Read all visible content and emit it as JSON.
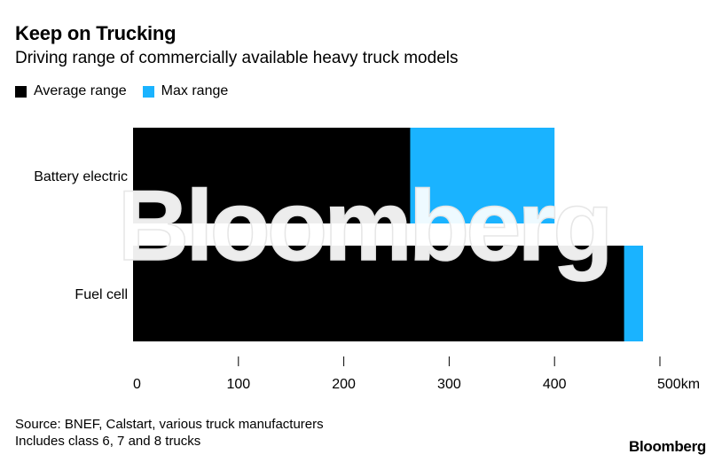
{
  "chart_data": {
    "type": "bar",
    "orientation": "horizontal",
    "stacked": false,
    "overlay": true,
    "title": "Keep on Trucking",
    "subtitle": "Driving range of commercially available heavy truck models",
    "categories": [
      "Battery electric",
      "Fuel cell"
    ],
    "series": [
      {
        "name": "Average range",
        "color": "#000000",
        "values": [
          263,
          466
        ]
      },
      {
        "name": "Max range",
        "color": "#1ab3ff",
        "values": [
          400,
          484
        ]
      }
    ],
    "x_ticks": [
      0,
      100,
      200,
      300,
      400,
      500
    ],
    "x_tick_labels": [
      "0",
      "100",
      "200",
      "300",
      "400",
      "500km"
    ],
    "xlim": [
      0,
      500
    ],
    "grid": false,
    "legend_position": "top-left"
  },
  "footer": {
    "source": "Source: BNEF, Calstart, various truck manufacturers",
    "note": "Includes class 6, 7 and 8 trucks"
  },
  "brand": {
    "logo_text": "Bloomberg",
    "watermark_text": "Bloomberg"
  }
}
